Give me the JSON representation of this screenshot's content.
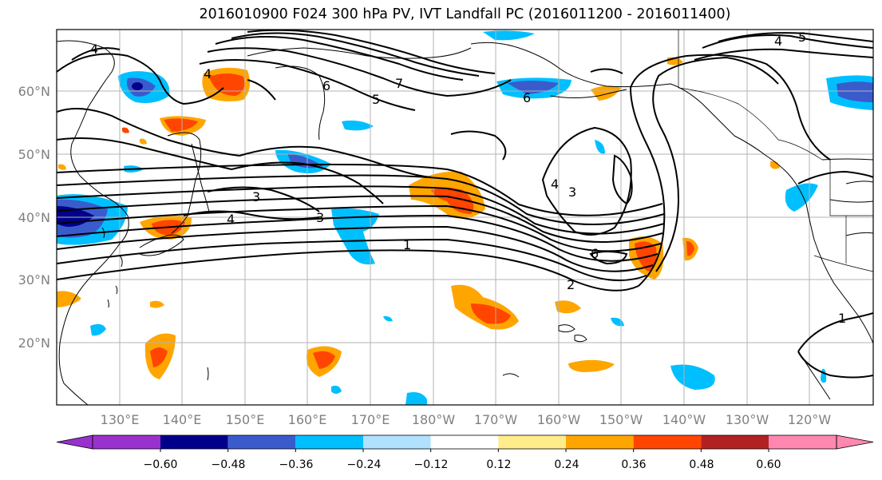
{
  "title": "2016010900 F024 300 hPa PV, IVT Landfall PC (2016011200 - 2016011400)",
  "map": {
    "lat_labels": [
      "60°N",
      "50°N",
      "40°N",
      "30°N",
      "20°N"
    ],
    "lon_labels": [
      "130°E",
      "140°E",
      "150°E",
      "160°E",
      "170°E",
      "180°W",
      "170°W",
      "160°W",
      "150°W",
      "140°W",
      "130°W",
      "120°W"
    ],
    "contour_labels": [
      {
        "id": "c4a",
        "text": "4"
      },
      {
        "id": "c4b",
        "text": "4"
      },
      {
        "id": "c6a",
        "text": "6"
      },
      {
        "id": "c5a",
        "text": "5"
      },
      {
        "id": "c7a",
        "text": "7"
      },
      {
        "id": "c3a",
        "text": "3"
      },
      {
        "id": "c3b",
        "text": "3"
      },
      {
        "id": "c4c",
        "text": "4"
      },
      {
        "id": "c1a",
        "text": "1"
      },
      {
        "id": "c6b",
        "text": "6"
      },
      {
        "id": "c2a",
        "text": "2"
      },
      {
        "id": "c6c",
        "text": "6"
      },
      {
        "id": "c4d",
        "text": "4"
      },
      {
        "id": "c3c",
        "text": "3"
      },
      {
        "id": "c1b",
        "text": "1"
      },
      {
        "id": "c4e",
        "text": "4"
      },
      {
        "id": "c5b",
        "text": "5"
      }
    ]
  },
  "colorbar": {
    "colors": [
      "#9932cc",
      "#00008b",
      "#3a5bcc",
      "#00bfff",
      "#b0e2ff",
      "#ffffff",
      "#ffec8b",
      "#ffa500",
      "#ff4500",
      "#b22222",
      "#ff88b0"
    ],
    "tick_labels": [
      "−0.60",
      "−0.48",
      "−0.36",
      "−0.24",
      "−0.12",
      "0.12",
      "0.24",
      "0.36",
      "0.48",
      "0.60"
    ]
  }
}
